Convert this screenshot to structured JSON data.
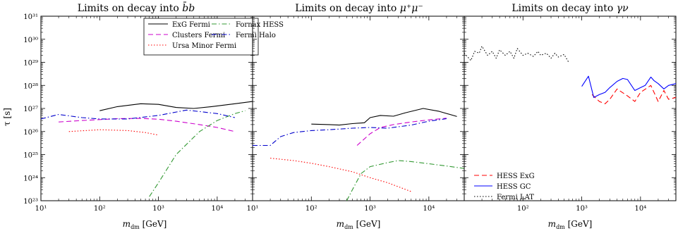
{
  "figure": {
    "y_label": "τ [s]",
    "x_label_main": "m",
    "x_label_sub": "dm",
    "x_label_unit": " [GeV]"
  },
  "chart_data": [
    {
      "type": "line",
      "title_prefix": "Limits on decay into ",
      "title_math": "b̄b",
      "xscale": "log",
      "yscale": "log",
      "xlim": [
        10,
        40000
      ],
      "ylim": [
        1e+23,
        1e+31
      ],
      "grid": false,
      "legend": {
        "placement": "top-center",
        "columns": 2
      },
      "series": [
        {
          "name": "ExG Fermi",
          "color": "#000000",
          "dash": "solid",
          "x": [
            100,
            200,
            500,
            1000,
            2000,
            4000,
            8000,
            20000,
            40000
          ],
          "y": [
            8e+26,
            1.2e+27,
            1.6e+27,
            1.5e+27,
            1.1e+27,
            1e+27,
            1.2e+27,
            1.6e+27,
            2e+27
          ]
        },
        {
          "name": "Clusters Fermi",
          "color": "#cc00cc",
          "dash": "dashed",
          "x": [
            20,
            50,
            100,
            200,
            500,
            1000,
            2000,
            5000,
            10000,
            20000
          ],
          "y": [
            2.6e+26,
            3e+26,
            3.3e+26,
            3.6e+26,
            3.7e+26,
            3.4e+26,
            2.8e+26,
            2e+26,
            1.5e+26,
            1e+26
          ]
        },
        {
          "name": "Ursa Minor Fermi",
          "color": "#ff0000",
          "dash": "dotted",
          "x": [
            30,
            100,
            300,
            600,
            1000
          ],
          "y": [
            1e+26,
            1.2e+26,
            1.1e+26,
            9e+25,
            7e+25
          ]
        },
        {
          "name": "Fornax HESS",
          "color": "#339933",
          "dash": "dashdot",
          "x": [
            700,
            1000,
            2000,
            5000,
            10000,
            20000,
            30000
          ],
          "y": [
            1.5e+23,
            6e+23,
            1e+25,
            1e+26,
            3e+26,
            6e+26,
            8e+26
          ]
        },
        {
          "name": "Fermi Halo",
          "color": "#0000cc",
          "dash": "dashdot",
          "x": [
            10,
            20,
            50,
            100,
            300,
            1000,
            3000,
            10000,
            20000
          ],
          "y": [
            3.5e+26,
            5.5e+26,
            4e+26,
            3.5e+26,
            3.5e+26,
            5e+26,
            8.5e+26,
            6e+26,
            4e+26
          ]
        }
      ]
    },
    {
      "type": "line",
      "title_prefix": "Limits on decay into ",
      "title_math": "μ⁺μ⁻",
      "xscale": "log",
      "yscale": "log",
      "xlim": [
        10,
        40000
      ],
      "ylim": [
        1e+23,
        1e+31
      ],
      "grid": false,
      "series": [
        {
          "name": "ExG Fermi",
          "color": "#000000",
          "dash": "solid",
          "x": [
            100,
            200,
            300,
            500,
            800,
            1000,
            1500,
            2500,
            4000,
            8000,
            15000,
            30000
          ],
          "y": [
            2.1e+26,
            2e+26,
            1.9e+26,
            2.2e+26,
            2.4e+26,
            4e+26,
            5e+26,
            4.6e+26,
            6.5e+26,
            1e+27,
            7.5e+26,
            4.5e+26
          ]
        },
        {
          "name": "Clusters Fermi",
          "color": "#cc00cc",
          "dash": "dashed",
          "x": [
            600,
            1000,
            1500,
            2500,
            5000,
            10000,
            20000
          ],
          "y": [
            2.5e+25,
            8e+25,
            1.5e+26,
            2e+26,
            2.6e+26,
            3.2e+26,
            3.8e+26
          ]
        },
        {
          "name": "Ursa Minor Fermi",
          "color": "#ff0000",
          "dash": "dotted",
          "x": [
            20,
            50,
            100,
            200,
            500,
            1000,
            2000,
            5000
          ],
          "y": [
            7e+24,
            5.5e+24,
            4.2e+24,
            3e+24,
            1.8e+24,
            1e+24,
            6e+23,
            2.5e+23
          ]
        },
        {
          "name": "Fornax HESS",
          "color": "#339933",
          "dash": "dashdot",
          "x": [
            400,
            500,
            700,
            1000,
            2000,
            3000,
            5000,
            10000,
            20000,
            40000
          ],
          "y": [
            1e+23,
            3e+23,
            1.5e+24,
            3e+24,
            4.5e+24,
            5.5e+24,
            5e+24,
            4e+24,
            3.2e+24,
            2.5e+24
          ]
        },
        {
          "name": "Fermi Halo",
          "color": "#0000cc",
          "dash": "dashdot",
          "x": [
            10,
            20,
            30,
            50,
            100,
            200,
            500,
            1000,
            2000,
            5000,
            10000,
            20000
          ],
          "y": [
            2.5e+25,
            2.5e+25,
            6e+25,
            9e+25,
            1.1e+26,
            1.2e+26,
            1.4e+26,
            1.5e+26,
            1.4e+26,
            1.9e+26,
            2.8e+26,
            3.6e+26
          ]
        }
      ]
    },
    {
      "type": "line",
      "title_prefix": "Limits on decay into ",
      "title_math": "γν",
      "xscale": "log",
      "yscale": "log",
      "xlim": [
        10,
        40000
      ],
      "ylim": [
        1e+23,
        1e+31
      ],
      "grid": false,
      "legend": {
        "placement": "bottom-left",
        "columns": 1
      },
      "series": [
        {
          "name": "HESS ExG",
          "color": "#ff0000",
          "dash": "dashed",
          "x": [
            1500,
            2000,
            2500,
            3000,
            4000,
            6000,
            8000,
            10000,
            15000,
            20000,
            25000,
            30000,
            40000
          ],
          "y": [
            4e+27,
            2e+27,
            1.6e+27,
            2.5e+27,
            7e+27,
            3.5e+27,
            2e+27,
            5e+27,
            1e+28,
            2e+27,
            6e+27,
            2.5e+27,
            3e+27
          ]
        },
        {
          "name": "HESS GC",
          "color": "#0000ff",
          "dash": "solid",
          "x": [
            1000,
            1300,
            1600,
            2000,
            2500,
            3000,
            4000,
            5000,
            6000,
            8000,
            10000,
            12000,
            15000,
            17000,
            20000,
            25000,
            30000,
            40000
          ],
          "y": [
            9e+27,
            2.5e+28,
            3e+27,
            4e+27,
            5e+27,
            8e+27,
            1.5e+28,
            2e+28,
            1.8e+28,
            6e+27,
            8e+27,
            1e+28,
            2.3e+28,
            1.6e+28,
            1.2e+28,
            7e+27,
            1e+28,
            1.2e+28
          ]
        },
        {
          "name": "Fermi LAT",
          "color": "#000000",
          "dash": "dotted",
          "x": [
            10,
            13,
            15,
            18,
            20,
            25,
            30,
            35,
            40,
            50,
            60,
            70,
            80,
            100,
            120,
            150,
            180,
            200,
            250,
            300,
            350,
            400,
            500,
            600
          ],
          "y": [
            2.5e+29,
            1.2e+29,
            3e+29,
            2.5e+29,
            5e+29,
            2e+29,
            3e+29,
            1.5e+29,
            3.5e+29,
            2e+29,
            3e+29,
            1.5e+29,
            4e+29,
            2e+29,
            2.5e+29,
            1.8e+29,
            3e+29,
            2e+29,
            2.5e+29,
            1.5e+29,
            2.5e+29,
            1.7e+29,
            2.2e+29,
            1e+29
          ]
        }
      ]
    }
  ]
}
